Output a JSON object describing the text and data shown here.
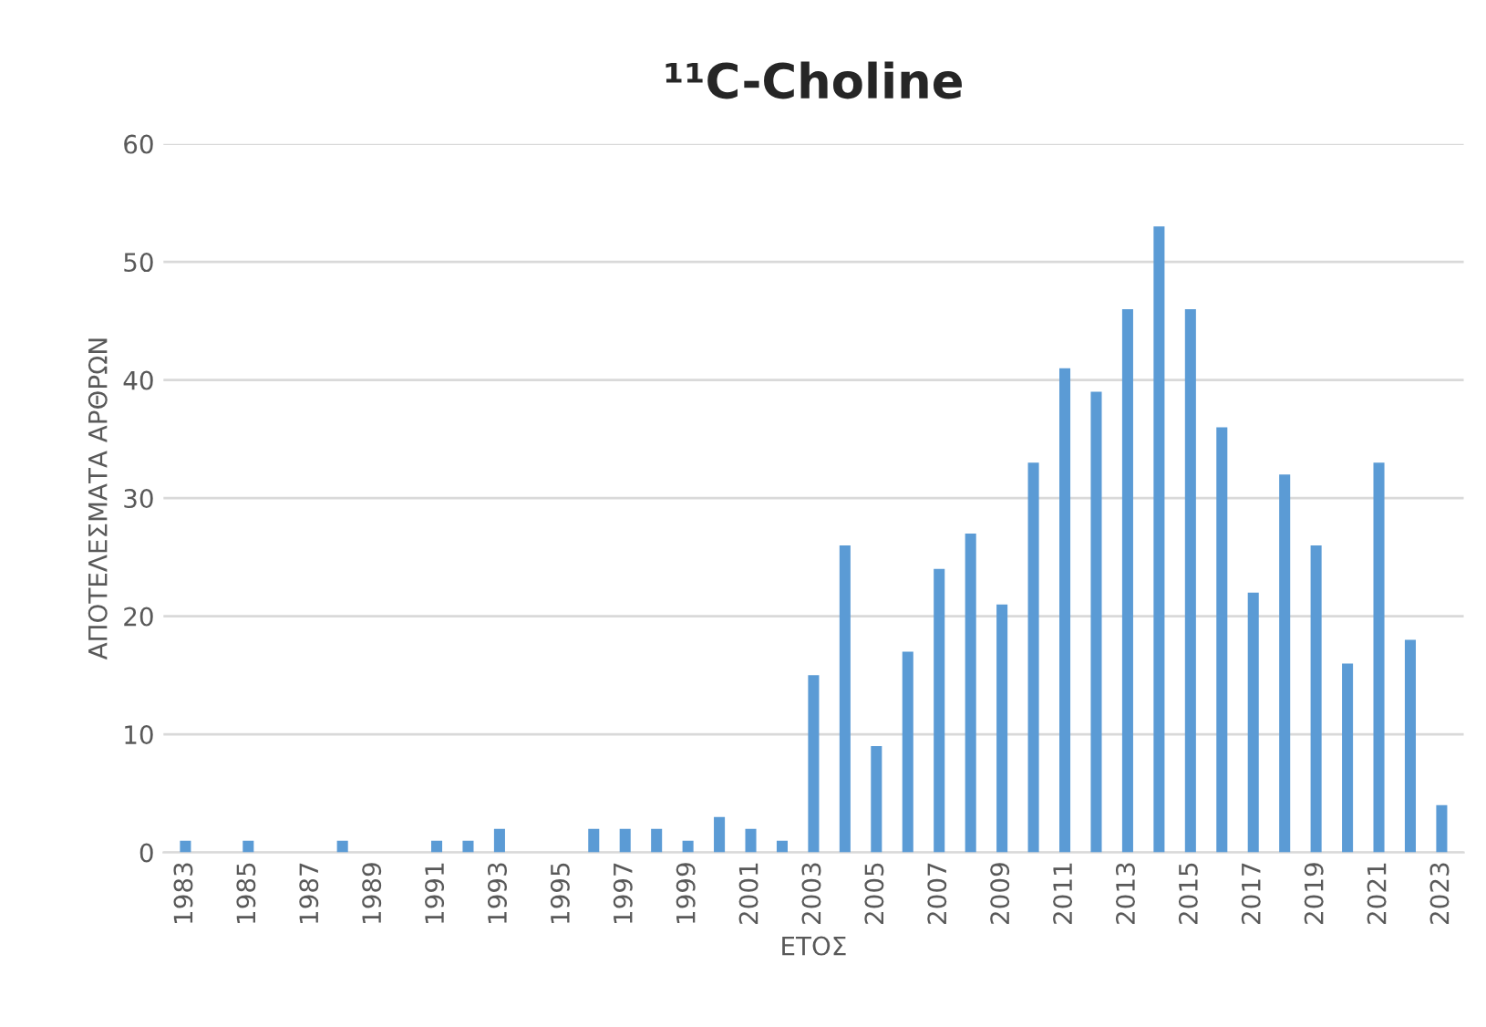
{
  "chart_data": {
    "type": "bar",
    "title": "¹¹C-Choline",
    "xlabel": "ΕΤΟΣ",
    "ylabel": "ΑΠΟΤΕΛΕΣΜΑΤΑ ΑΡΘΡΩΝ",
    "categories": [
      "1983",
      null,
      "1985",
      null,
      "1987",
      null,
      "1989",
      null,
      "1991",
      null,
      "1993",
      null,
      "1995",
      null,
      "1997",
      null,
      "1999",
      null,
      "2001",
      null,
      "2003",
      null,
      "2005",
      null,
      "2007",
      null,
      "2009",
      null,
      "2011",
      null,
      "2013",
      null,
      "2015",
      null,
      "2017",
      null,
      "2019",
      null,
      "2021",
      null,
      "2023"
    ],
    "values": [
      1,
      0,
      1,
      0,
      0,
      1,
      0,
      0,
      1,
      1,
      2,
      0,
      0,
      2,
      2,
      2,
      1,
      3,
      2,
      1,
      15,
      26,
      9,
      17,
      24,
      27,
      21,
      33,
      41,
      39,
      46,
      53,
      46,
      36,
      22,
      32,
      26,
      16,
      33,
      18,
      4
    ],
    "color": "#5b9bd5",
    "ylim": [
      0,
      60
    ],
    "yticks": [
      0,
      10,
      20,
      30,
      40,
      50,
      60
    ],
    "grid": "y",
    "legend": false
  }
}
